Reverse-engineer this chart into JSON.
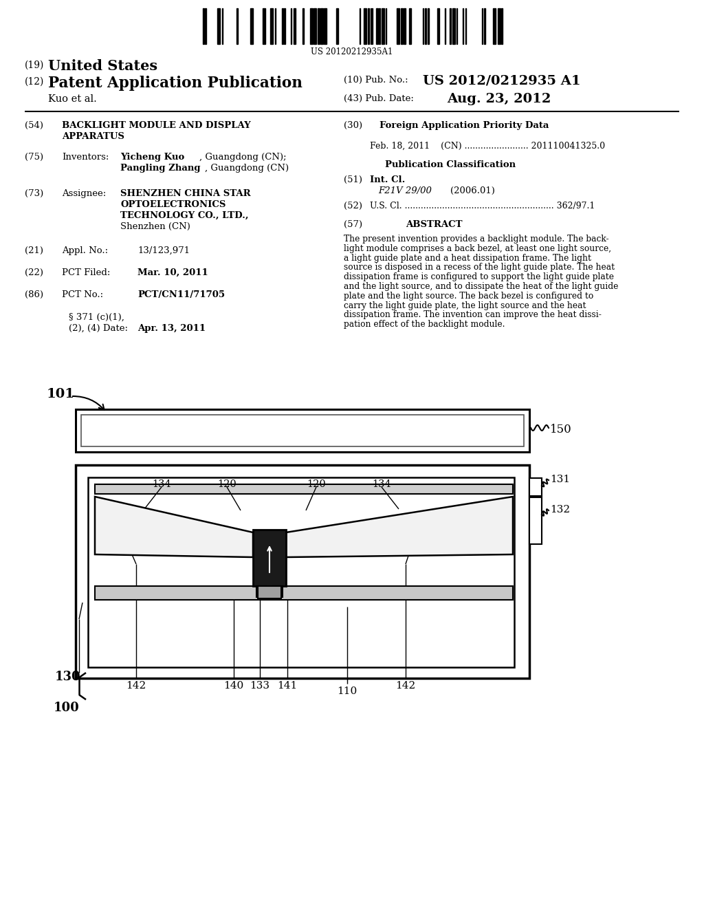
{
  "bg_color": "#ffffff",
  "barcode_num": "US 20120212935A1",
  "abstract_lines": [
    "The present invention provides a backlight module. The back-",
    "light module comprises a back bezel, at least one light source,",
    "a light guide plate and a heat dissipation frame. The light",
    "source is disposed in a recess of the light guide plate. The heat",
    "dissipation frame is configured to support the light guide plate",
    "and the light source, and to dissipate the heat of the light guide",
    "plate and the light source. The back bezel is configured to",
    "carry the light guide plate, the light source and the heat",
    "dissipation frame. The invention can improve the heat dissi-",
    "pation effect of the backlight module."
  ]
}
